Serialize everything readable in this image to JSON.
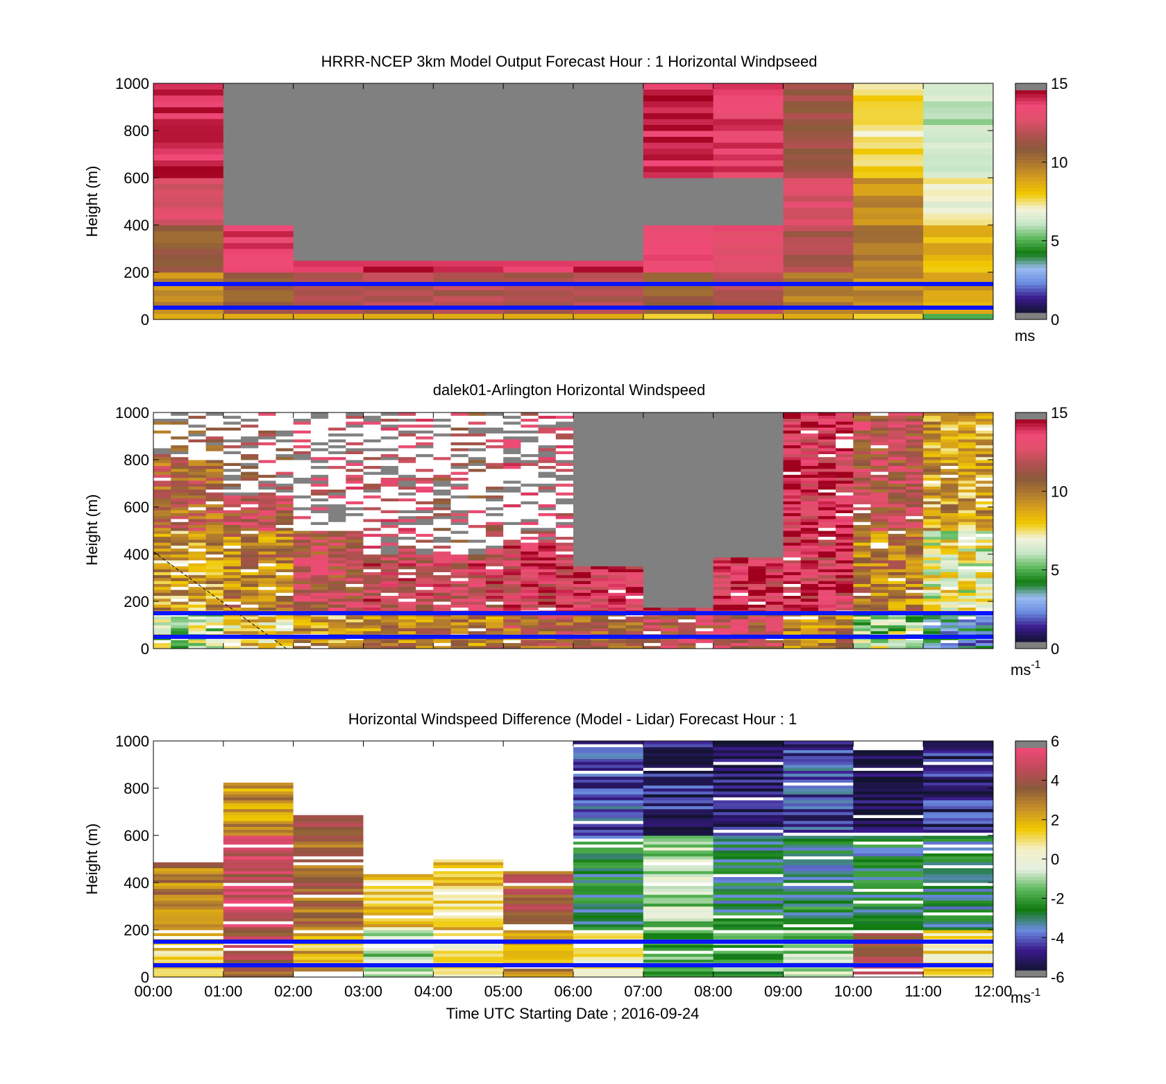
{
  "figure": {
    "xtick_labels": [
      "00:00",
      "01:00",
      "02:00",
      "03:00",
      "04:00",
      "05:00",
      "06:00",
      "07:00",
      "08:00",
      "09:00",
      "10:00",
      "11:00",
      "12:00"
    ],
    "xlabel": "Time UTC  Starting Date ; 2016-09-24"
  },
  "colors": {
    "missing": "#808080",
    "reference_lines": "#0a14ff",
    "speed_colormap": [
      "#141432",
      "#3a1a8c",
      "#6a8ce0",
      "#9bbcf0",
      "#0f7a0f",
      "#5cb85c",
      "#c8e6c8",
      "#f4f4dc",
      "#f0c800",
      "#d9a21a",
      "#b07a30",
      "#8a5a3a",
      "#b05050",
      "#e0506a",
      "#f04a78",
      "#a0001e"
    ],
    "diff_colormap": [
      "#141432",
      "#3a1a8c",
      "#6a8ce0",
      "#0f7a0f",
      "#5cb85c",
      "#e6f0e0",
      "#f4f0c8",
      "#f0c800",
      "#c89028",
      "#8a5a3a",
      "#c04a5a",
      "#f04a78"
    ]
  },
  "chart_data": [
    {
      "type": "heatmap",
      "title": "HRRR-NCEP 3km Model Output   Forecast Hour : 1 Horizontal Windpseed",
      "ylabel": "Height (m)",
      "ylim": [
        0,
        1000
      ],
      "yticks": [
        "0",
        "200",
        "400",
        "600",
        "800",
        "1000"
      ],
      "xlim": [
        "00:00",
        "12:00"
      ],
      "colorbar": {
        "ticks": [
          "0",
          "5",
          "10",
          "15"
        ],
        "range": [
          0,
          15
        ],
        "unit": "ms"
      },
      "reference_lines_height_m": [
        50,
        150
      ],
      "time_bins": [
        "00:00",
        "01:00",
        "02:00",
        "03:00",
        "04:00",
        "05:00",
        "06:00",
        "07:00",
        "08:00",
        "09:00",
        "10:00",
        "11:00"
      ],
      "column_profiles_ms": [
        {
          "t": "00:00",
          "top_m": 1000,
          "below_10m": 9,
          "10_200m": 9.5,
          "200_400m": 11,
          "400_600m": 13,
          "600_1000m": 14.5
        },
        {
          "t": "01:00",
          "top_m": 400,
          "below_10m": 9,
          "10_200m": 11,
          "200_400m": 14,
          "400_600m": null,
          "600_1000m": null
        },
        {
          "t": "02:00",
          "top_m": 250,
          "below_10m": 9,
          "10_200m": 12,
          "200_400m": 14.5,
          "400_600m": null,
          "600_1000m": null
        },
        {
          "t": "03:00",
          "top_m": 250,
          "below_10m": 9,
          "10_200m": 12,
          "200_400m": 14.5,
          "400_600m": null,
          "600_1000m": null
        },
        {
          "t": "04:00",
          "top_m": 250,
          "below_10m": 9,
          "10_200m": 12,
          "200_400m": 14.5,
          "400_600m": null,
          "600_1000m": null
        },
        {
          "t": "05:00",
          "top_m": 250,
          "below_10m": 9,
          "10_200m": 12,
          "200_400m": 14.5,
          "400_600m": null,
          "600_1000m": null
        },
        {
          "t": "06:00",
          "top_m": 250,
          "below_10m": 9,
          "10_200m": 12,
          "200_400m": 14.5,
          "400_600m": null,
          "600_1000m": null
        },
        {
          "t": "07:00",
          "top_m": 1000,
          "below_10m": 8,
          "10_200m": 11,
          "200_400m": 14,
          "400_600m": null,
          "600_1000m": 14.5
        },
        {
          "t": "08:00",
          "top_m": 1000,
          "below_10m": 9,
          "10_200m": 12,
          "200_400m": 13.5,
          "400_600m": null,
          "600_1000m": 14
        },
        {
          "t": "09:00",
          "top_m": 1000,
          "below_10m": 9,
          "10_200m": 10,
          "200_400m": 12,
          "400_600m": 13,
          "600_1000m": 11.5
        },
        {
          "t": "10:00",
          "top_m": 1000,
          "below_10m": 8,
          "10_200m": 9.5,
          "200_400m": 10,
          "400_600m": 9.5,
          "600_1000m": 7.5
        },
        {
          "t": "11:00",
          "top_m": 1000,
          "below_10m": 5,
          "10_200m": 9,
          "200_400m": 8.5,
          "400_600m": 7,
          "600_1000m": 6
        }
      ]
    },
    {
      "type": "heatmap",
      "title": "dalek01-Arlington  Horizontal Windspeed",
      "ylabel": "Height (m)",
      "ylim": [
        0,
        1000
      ],
      "yticks": [
        "0",
        "200",
        "400",
        "600",
        "800",
        "1000"
      ],
      "xlim": [
        "00:00",
        "12:00"
      ],
      "colorbar": {
        "ticks": [
          "0",
          "5",
          "10",
          "15"
        ],
        "range": [
          0,
          15
        ],
        "unit": "ms",
        "unit_exponent": "-1"
      },
      "reference_lines_height_m": [
        50,
        150
      ],
      "hourly_summary": [
        {
          "t": "00:00",
          "near_surface_ms": 6,
          "mid_ms": 9,
          "upper_ms": 11,
          "valid_top_m": 800
        },
        {
          "t": "01:00",
          "near_surface_ms": 8,
          "mid_ms": 10,
          "upper_ms": 12,
          "valid_top_m": 650
        },
        {
          "t": "02:00",
          "near_surface_ms": 9,
          "mid_ms": 12,
          "upper_ms": 13,
          "valid_top_m": 500
        },
        {
          "t": "03:00",
          "near_surface_ms": 10,
          "mid_ms": 13,
          "upper_ms": 13,
          "valid_top_m": 400
        },
        {
          "t": "04:00",
          "near_surface_ms": 10,
          "mid_ms": 13,
          "upper_ms": 12,
          "valid_top_m": 400
        },
        {
          "t": "05:00",
          "near_surface_ms": 11,
          "mid_ms": 13.5,
          "upper_ms": 13,
          "valid_top_m": 450
        },
        {
          "t": "06:00",
          "near_surface_ms": 11,
          "mid_ms": 14,
          "upper_ms": null,
          "valid_top_m": 350
        },
        {
          "t": "07:00",
          "near_surface_ms": 12,
          "mid_ms": 14,
          "upper_ms": null,
          "valid_top_m": 170
        },
        {
          "t": "08:00",
          "near_surface_ms": 12,
          "mid_ms": 14,
          "upper_ms": null,
          "valid_top_m": 380
        },
        {
          "t": "09:00",
          "near_surface_ms": 10,
          "mid_ms": 13.5,
          "upper_ms": 14,
          "valid_top_m": 1000
        },
        {
          "t": "10:00",
          "near_surface_ms": 6,
          "mid_ms": 10,
          "upper_ms": 12,
          "valid_top_m": 1000
        },
        {
          "t": "11:00",
          "near_surface_ms": 3,
          "mid_ms": 7,
          "upper_ms": 9,
          "valid_top_m": 1000
        }
      ]
    },
    {
      "type": "heatmap",
      "title": "Horizontal Windspeed Difference (Model - Lidar) Forecast Hour : 1",
      "ylabel": "Height (m)",
      "ylim": [
        0,
        1000
      ],
      "yticks": [
        "0",
        "200",
        "400",
        "600",
        "800",
        "1000"
      ],
      "xlim": [
        "00:00",
        "12:00"
      ],
      "colorbar": {
        "ticks": [
          "-6",
          "-4",
          "-2",
          "0",
          "2",
          "4",
          "6"
        ],
        "range": [
          -6,
          6
        ],
        "unit": "ms",
        "unit_exponent": "-1"
      },
      "reference_lines_height_m": [
        50,
        150
      ],
      "time_bins": [
        "00:00",
        "01:00",
        "02:00",
        "03:00",
        "04:00",
        "05:00",
        "06:00",
        "07:00",
        "08:00",
        "09:00",
        "10:00",
        "11:00"
      ],
      "column_profiles_ms": [
        {
          "t": "00:00",
          "top_m": 480,
          "low": 1.5,
          "mid": 3.2,
          "upper": 3.0
        },
        {
          "t": "01:00",
          "top_m": 820,
          "low": 4,
          "mid": 5,
          "upper": 2.5
        },
        {
          "t": "02:00",
          "top_m": 680,
          "low": 2,
          "mid": 3.5,
          "upper": 4
        },
        {
          "t": "03:00",
          "top_m": 430,
          "low": -1,
          "mid": 1.5,
          "upper": 1.5
        },
        {
          "t": "04:00",
          "top_m": 500,
          "low": 0.5,
          "mid": 1.5,
          "upper": 1.5
        },
        {
          "t": "05:00",
          "top_m": 450,
          "low": 2.5,
          "mid": 4,
          "upper": 3.5
        },
        {
          "t": "06:00",
          "top_m": 1000,
          "low": 0.5,
          "mid": -3,
          "upper": -4.5
        },
        {
          "t": "07:00",
          "top_m": 1000,
          "low": -2,
          "mid": -1,
          "upper": -5
        },
        {
          "t": "08:00",
          "top_m": 1000,
          "low": -2,
          "mid": -3,
          "upper": -5.5
        },
        {
          "t": "09:00",
          "top_m": 1000,
          "low": -1,
          "mid": -3,
          "upper": -4.5
        },
        {
          "t": "10:00",
          "top_m": 960,
          "low": 4,
          "mid": -3,
          "upper": -5.8
        },
        {
          "t": "11:00",
          "top_m": 1000,
          "low": 1,
          "mid": -3,
          "upper": -5
        }
      ]
    }
  ]
}
